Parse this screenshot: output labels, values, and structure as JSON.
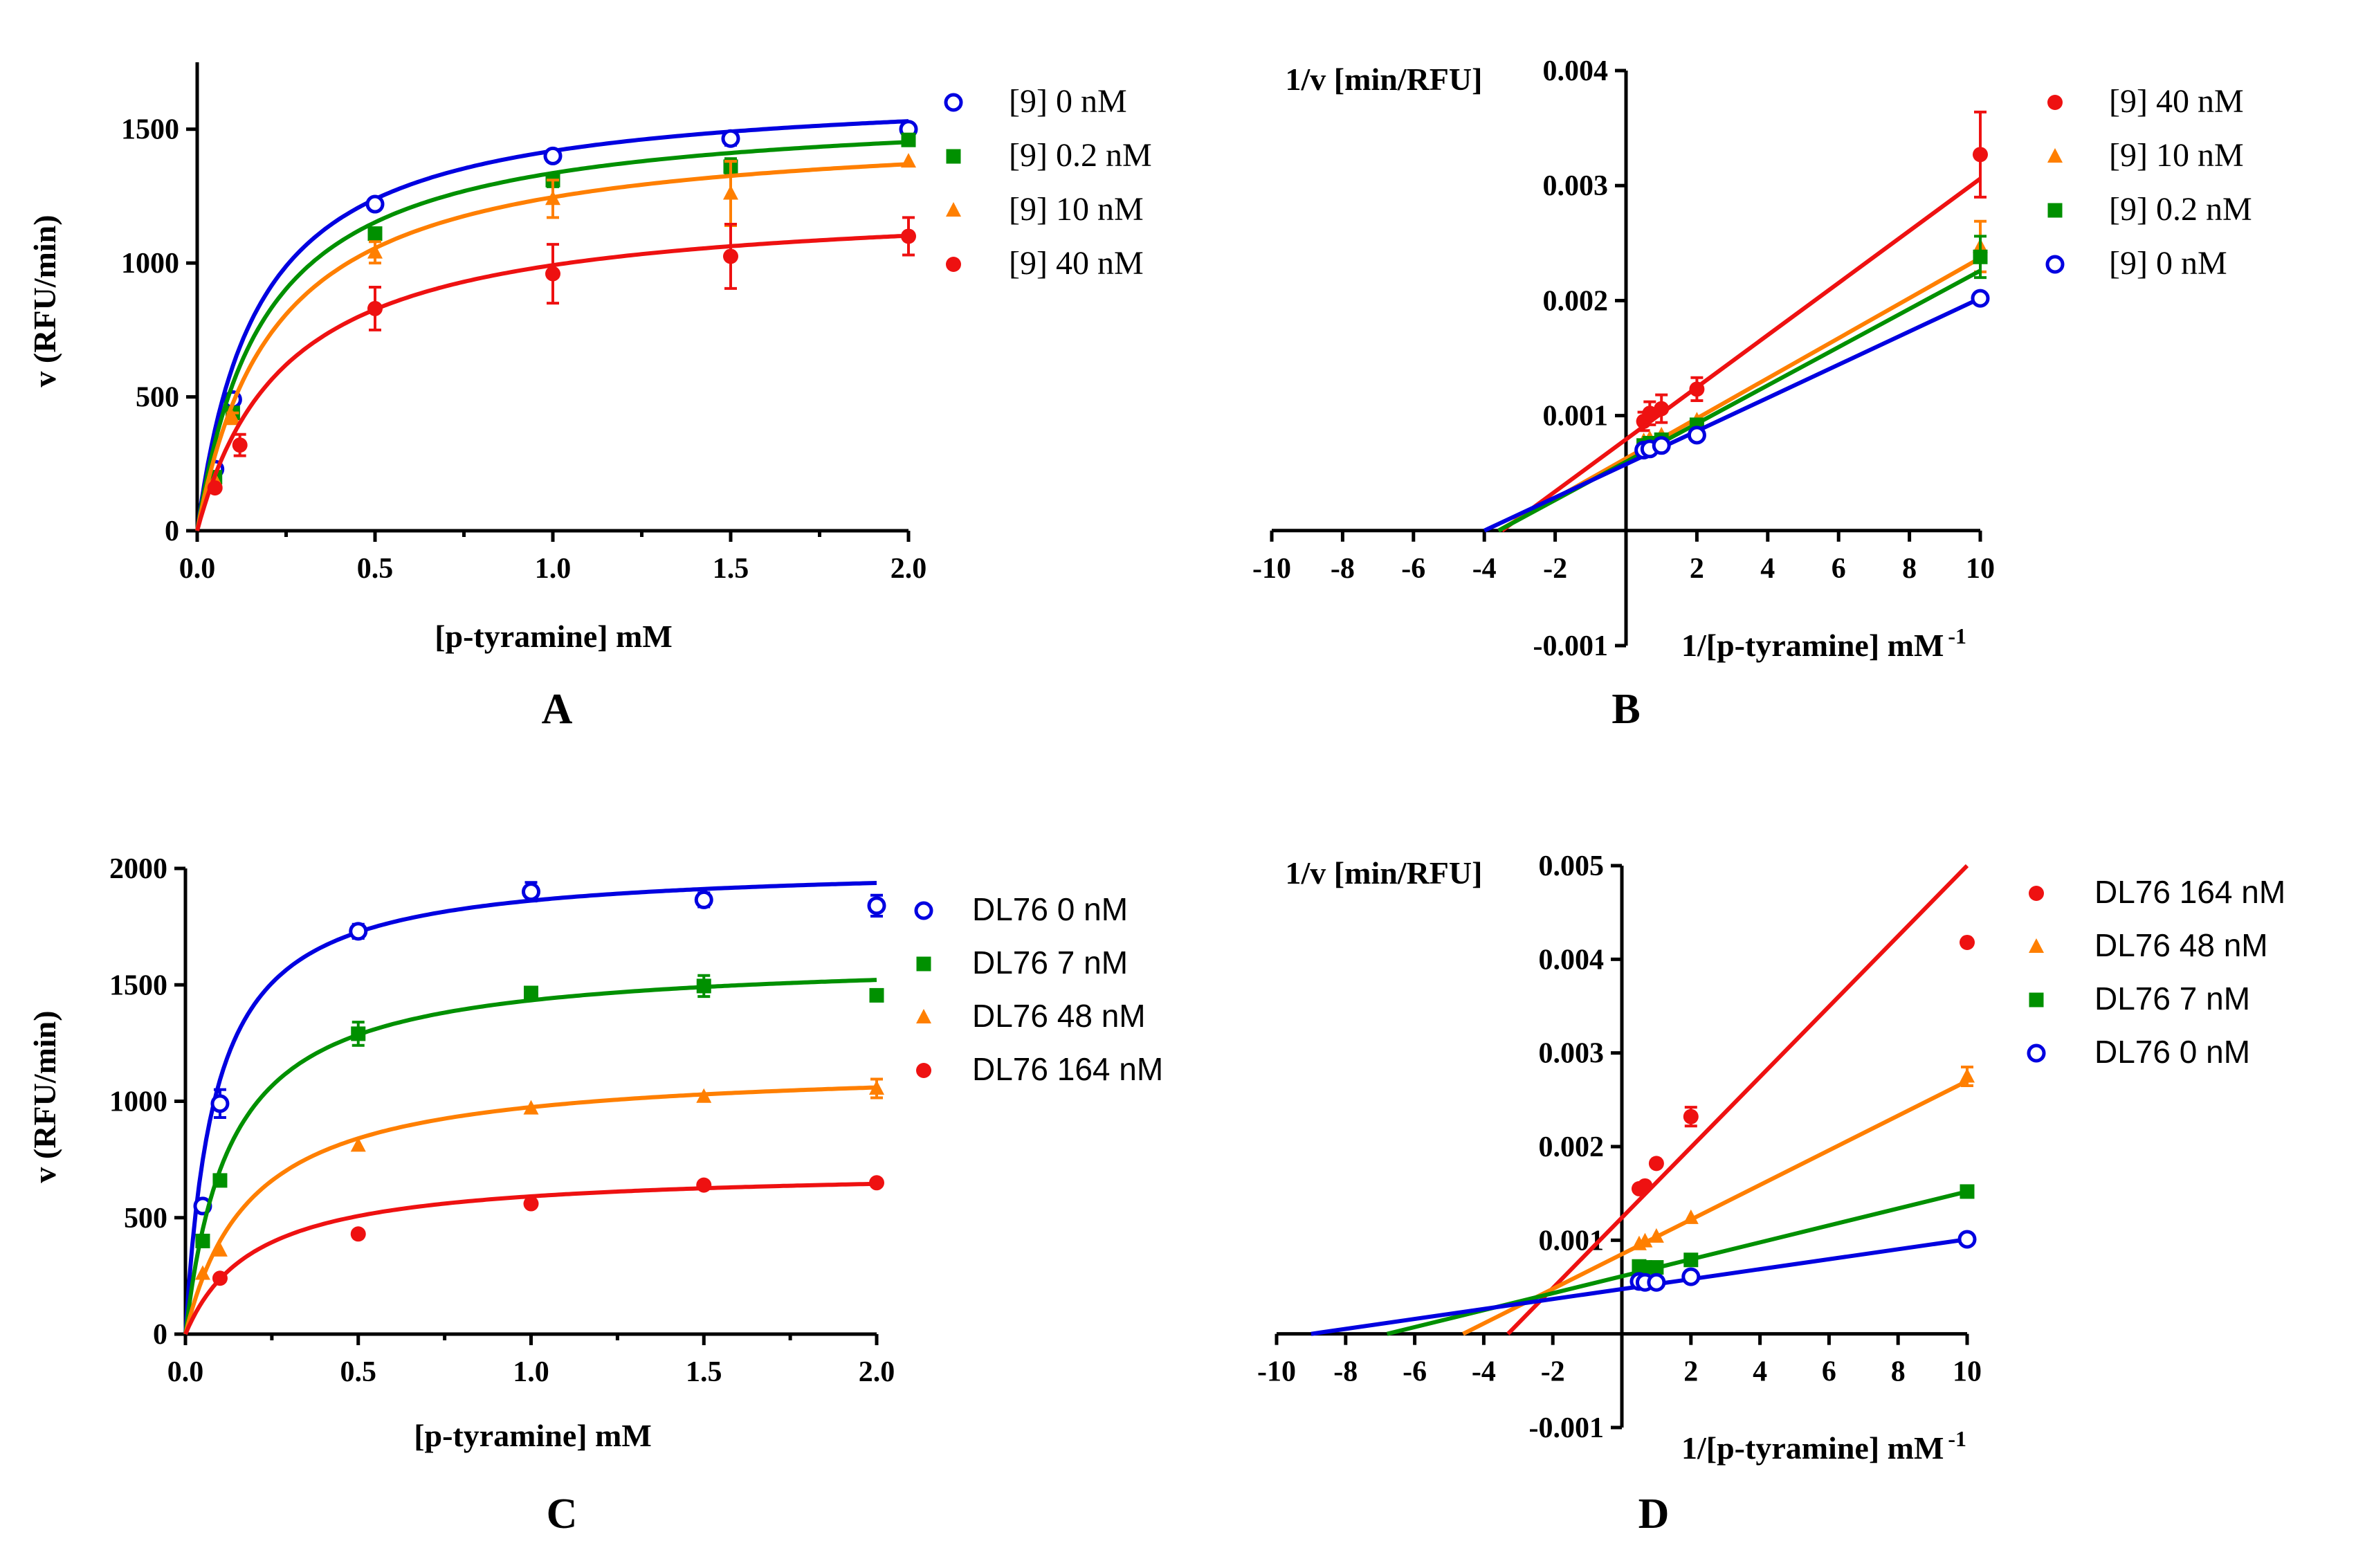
{
  "chart_data": [
    {
      "id": "A",
      "type": "line",
      "panel_label": "A",
      "xlabel": "[p-tyramine] mM",
      "ylabel": "v (RFU/min)",
      "xlim": [
        0,
        2.0
      ],
      "ylim": [
        0,
        1750
      ],
      "xticks": [
        "0.0",
        "0.5",
        "1.0",
        "1.5",
        "2.0"
      ],
      "xtick_values": [
        0,
        0.5,
        1.0,
        1.5,
        2.0
      ],
      "yticks": [
        "0",
        "500",
        "1000",
        "1500"
      ],
      "ytick_values": [
        0,
        500,
        1000,
        1500
      ],
      "legend_position": "right",
      "series": [
        {
          "name": "[9] 0 nM",
          "color": "#0000e0",
          "marker": "open-circle",
          "vmax": 1660,
          "km": 0.17,
          "x": [
            0.05,
            0.1,
            0.5,
            1.0,
            1.5,
            2.0
          ],
          "y": [
            230,
            490,
            1220,
            1400,
            1465,
            1500
          ],
          "err": [
            0,
            0,
            0,
            10,
            25,
            15
          ]
        },
        {
          "name": "[9] 0.2 nM",
          "color": "#009000",
          "marker": "square",
          "vmax": 1590,
          "km": 0.19,
          "x": [
            0.05,
            0.1,
            0.5,
            1.0,
            1.5,
            2.0
          ],
          "y": [
            200,
            440,
            1110,
            1310,
            1360,
            1460
          ],
          "err": [
            0,
            0,
            20,
            25,
            30,
            15
          ]
        },
        {
          "name": "[9] 10 nM",
          "color": "#ff7f00",
          "marker": "triangle",
          "vmax": 1520,
          "km": 0.22,
          "x": [
            0.05,
            0.1,
            0.5,
            1.0,
            1.5,
            2.0
          ],
          "y": [
            190,
            420,
            1040,
            1240,
            1260,
            1380
          ],
          "err": [
            0,
            20,
            40,
            70,
            120,
            0
          ]
        },
        {
          "name": "[9] 40 nM",
          "color": "#ee1111",
          "marker": "filled-circle",
          "vmax": 1240,
          "km": 0.25,
          "x": [
            0.05,
            0.12,
            0.5,
            1.0,
            1.5,
            2.0
          ],
          "y": [
            160,
            320,
            830,
            960,
            1025,
            1100
          ],
          "err": [
            0,
            40,
            80,
            110,
            120,
            70
          ]
        }
      ]
    },
    {
      "id": "B",
      "type": "line",
      "panel_label": "B",
      "xlabel": "1/[p-tyramine] mM",
      "xlabel_sup": "-1",
      "ylabel": "1/v [min/RFU]",
      "xlim": [
        -10,
        10
      ],
      "ylim": [
        -0.001,
        0.004
      ],
      "xticks": [
        "-10",
        "-8",
        "-6",
        "-4",
        "-2",
        "2",
        "4",
        "6",
        "8",
        "10"
      ],
      "xtick_values": [
        -10,
        -8,
        -6,
        -4,
        -2,
        2,
        4,
        6,
        8,
        10
      ],
      "yticks": [
        "-0.001",
        "0.001",
        "0.002",
        "0.003",
        "0.004"
      ],
      "ytick_values": [
        -0.001,
        0.001,
        0.002,
        0.003,
        0.004
      ],
      "legend_position": "right",
      "series": [
        {
          "name": "[9] 40 nM",
          "color": "#ee1111",
          "marker": "filled-circle",
          "line": [
            [
              -3.5,
              0
            ],
            [
              10,
              0.00306
            ]
          ],
          "x": [
            0.5,
            0.67,
            1.0,
            2.0,
            10.0
          ],
          "y": [
            0.00095,
            0.00102,
            0.00106,
            0.00123,
            0.00327
          ],
          "err": [
            8e-05,
            0.0001,
            0.00012,
            0.0001,
            0.00037
          ]
        },
        {
          "name": "[9] 10 nM",
          "color": "#ff7f00",
          "marker": "triangle",
          "line": [
            [
              -3.6,
              0
            ],
            [
              10,
              0.00237
            ]
          ],
          "x": [
            0.5,
            0.67,
            1.0,
            2.0,
            10.0
          ],
          "y": [
            0.00078,
            0.0008,
            0.00083,
            0.00096,
            0.00247
          ],
          "err": [
            0,
            0,
            0,
            0,
            0.00022
          ]
        },
        {
          "name": "[9] 0.2 nM",
          "color": "#009000",
          "marker": "square",
          "line": [
            [
              -3.6,
              0
            ],
            [
              10,
              0.00226
            ]
          ],
          "x": [
            0.5,
            0.67,
            1.0,
            2.0,
            10.0
          ],
          "y": [
            0.00074,
            0.00076,
            0.00079,
            0.00092,
            0.00238
          ],
          "err": [
            0,
            0,
            0,
            0,
            0.00018
          ]
        },
        {
          "name": "[9] 0 nM",
          "color": "#0000e0",
          "marker": "open-circle",
          "line": [
            [
              -4.0,
              0
            ],
            [
              10,
              0.00202
            ]
          ],
          "x": [
            0.5,
            0.67,
            1.0,
            2.0,
            10.0
          ],
          "y": [
            0.0007,
            0.00071,
            0.00074,
            0.00083,
            0.00202
          ],
          "err": [
            0,
            0,
            0,
            0,
            0
          ]
        }
      ]
    },
    {
      "id": "C",
      "type": "line",
      "panel_label": "C",
      "xlabel": "[p-tyramine] mM",
      "ylabel": "v (RFU/min)",
      "xlim": [
        0,
        2.0
      ],
      "ylim": [
        0,
        2000
      ],
      "xticks": [
        "0.0",
        "0.5",
        "1.0",
        "1.5",
        "2.0"
      ],
      "xtick_values": [
        0,
        0.5,
        1.0,
        1.5,
        2.0
      ],
      "yticks": [
        "0",
        "500",
        "1000",
        "1500",
        "2000"
      ],
      "ytick_values": [
        0,
        500,
        1000,
        1500,
        2000
      ],
      "legend_position": "right",
      "series": [
        {
          "name": "DL76 0 nM",
          "color": "#0000e0",
          "marker": "open-circle",
          "vmax": 2020,
          "km": 0.085,
          "x": [
            0.05,
            0.1,
            0.5,
            1.0,
            1.5,
            2.0
          ],
          "y": [
            550,
            990,
            1730,
            1900,
            1865,
            1840
          ],
          "err": [
            0,
            60,
            30,
            40,
            30,
            45
          ]
        },
        {
          "name": "DL76 7 nM",
          "color": "#009000",
          "marker": "square",
          "vmax": 1620,
          "km": 0.13,
          "x": [
            0.05,
            0.1,
            0.5,
            1.0,
            1.5,
            2.0
          ],
          "y": [
            400,
            660,
            1290,
            1465,
            1495,
            1455
          ],
          "err": [
            0,
            0,
            50,
            25,
            45,
            0
          ]
        },
        {
          "name": "DL76 48 nM",
          "color": "#ff7f00",
          "marker": "triangle",
          "vmax": 1160,
          "km": 0.19,
          "x": [
            0.05,
            0.1,
            0.5,
            1.0,
            1.5,
            2.0
          ],
          "y": [
            260,
            360,
            810,
            970,
            1020,
            1055
          ],
          "err": [
            0,
            0,
            0,
            0,
            0,
            40
          ]
        },
        {
          "name": "DL76 164 nM",
          "color": "#ee1111",
          "marker": "filled-circle",
          "vmax": 710,
          "km": 0.2,
          "x": [
            0.1,
            0.5,
            1.0,
            1.5,
            2.0
          ],
          "y": [
            240,
            430,
            560,
            640,
            650
          ],
          "err": [
            0,
            0,
            0,
            0,
            0
          ]
        }
      ]
    },
    {
      "id": "D",
      "type": "line",
      "panel_label": "D",
      "xlabel": "1/[p-tyramine] mM",
      "xlabel_sup": "-1",
      "ylabel": "1/v [min/RFU]",
      "xlim": [
        -10,
        10
      ],
      "ylim": [
        -0.001,
        0.005
      ],
      "xticks": [
        "-10",
        "-8",
        "-6",
        "-4",
        "-2",
        "2",
        "4",
        "6",
        "8",
        "10"
      ],
      "xtick_values": [
        -10,
        -8,
        -6,
        -4,
        -2,
        2,
        4,
        6,
        8,
        10
      ],
      "yticks": [
        "-0.001",
        "0.001",
        "0.002",
        "0.003",
        "0.004",
        "0.005"
      ],
      "ytick_values": [
        -0.001,
        0.001,
        0.002,
        0.003,
        0.004,
        0.005
      ],
      "legend_position": "right",
      "series": [
        {
          "name": "DL76 164 nM",
          "color": "#ee1111",
          "marker": "filled-circle",
          "line": [
            [
              -3.3,
              0
            ],
            [
              10,
              0.005
            ]
          ],
          "x": [
            0.5,
            0.67,
            1.0,
            2.0,
            10.0
          ],
          "y": [
            0.00155,
            0.00158,
            0.00182,
            0.00232,
            0.00418
          ],
          "err": [
            0,
            0,
            0,
            0.0001,
            0
          ]
        },
        {
          "name": "DL76 48 nM",
          "color": "#ff7f00",
          "marker": "triangle",
          "line": [
            [
              -4.6,
              0
            ],
            [
              10,
              0.0027
            ]
          ],
          "x": [
            0.5,
            0.67,
            1.0,
            2.0,
            10.0
          ],
          "y": [
            0.00096,
            0.00099,
            0.00104,
            0.00124,
            0.00275
          ],
          "err": [
            0,
            0,
            0,
            0,
            0.0001
          ]
        },
        {
          "name": "DL76 7 nM",
          "color": "#009000",
          "marker": "square",
          "line": [
            [
              -6.8,
              0
            ],
            [
              10,
              0.00152
            ]
          ],
          "x": [
            0.5,
            0.67,
            1.0,
            2.0,
            10.0
          ],
          "y": [
            0.00072,
            0.00071,
            0.00071,
            0.00079,
            0.00152
          ],
          "err": [
            0,
            0,
            0,
            0,
            0
          ]
        },
        {
          "name": "DL76 0 nM",
          "color": "#0000e0",
          "marker": "open-circle",
          "line": [
            [
              -9.0,
              0
            ],
            [
              10,
              0.00101
            ]
          ],
          "x": [
            0.5,
            0.67,
            1.0,
            2.0,
            10.0
          ],
          "y": [
            0.00056,
            0.00055,
            0.00055,
            0.00061,
            0.00101
          ],
          "err": [
            0,
            0,
            0,
            0,
            0
          ]
        }
      ]
    }
  ]
}
